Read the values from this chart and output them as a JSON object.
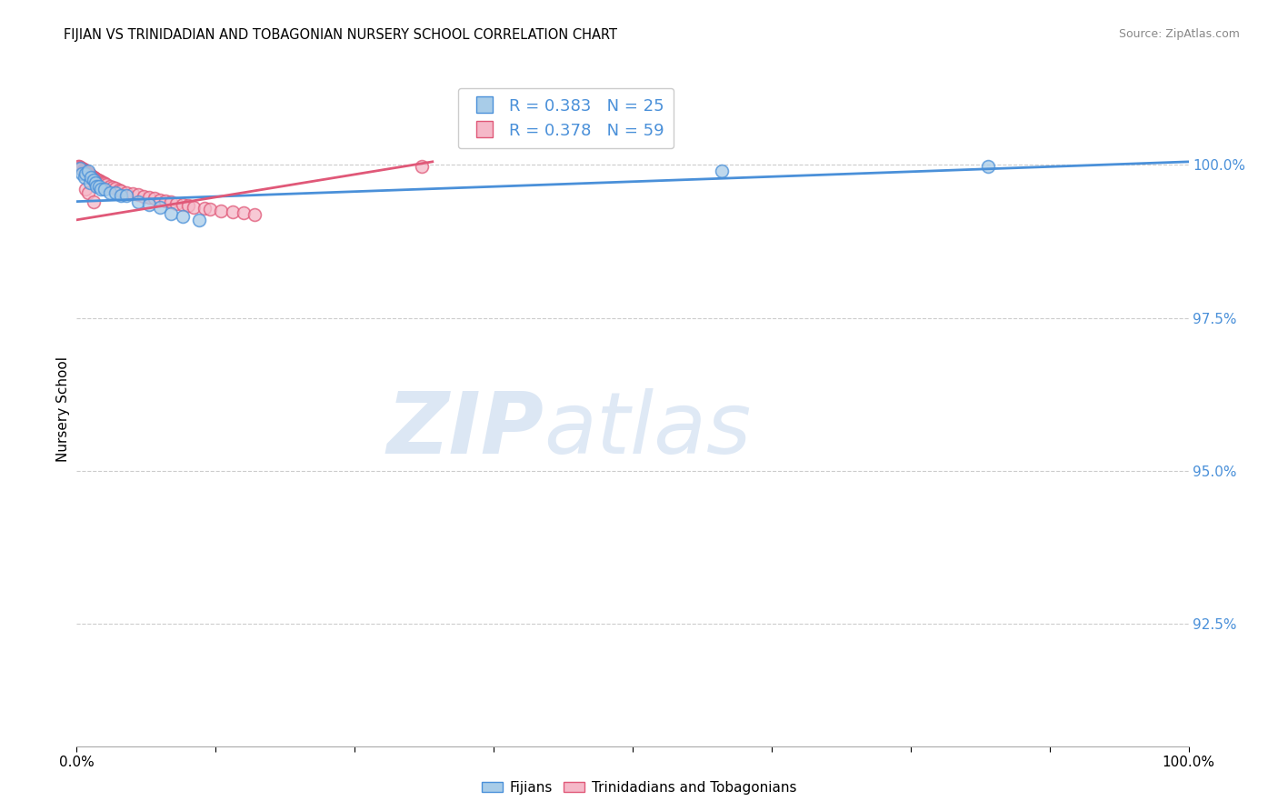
{
  "title": "FIJIAN VS TRINIDADIAN AND TOBAGONIAN NURSERY SCHOOL CORRELATION CHART",
  "source": "Source: ZipAtlas.com",
  "ylabel": "Nursery School",
  "ytick_labels": [
    "100.0%",
    "97.5%",
    "95.0%",
    "92.5%"
  ],
  "ytick_values": [
    1.0,
    0.975,
    0.95,
    0.925
  ],
  "xlim": [
    0.0,
    1.0
  ],
  "ylim": [
    0.905,
    1.015
  ],
  "legend_fijian": "R = 0.383   N = 25",
  "legend_trini": "R = 0.378   N = 59",
  "color_fijian_fill": "#a8cce8",
  "color_trini_fill": "#f5b8c8",
  "color_fijian_edge": "#4a90d9",
  "color_trini_edge": "#e05878",
  "color_fijian_line": "#4a90d9",
  "color_trini_line": "#e05878",
  "fijian_x": [
    0.003,
    0.005,
    0.007,
    0.008,
    0.01,
    0.012,
    0.013,
    0.015,
    0.017,
    0.018,
    0.02,
    0.022,
    0.025,
    0.03,
    0.035,
    0.04,
    0.045,
    0.055,
    0.065,
    0.075,
    0.085,
    0.095,
    0.11,
    0.58,
    0.82
  ],
  "fijian_y": [
    0.9995,
    0.9985,
    0.998,
    0.9985,
    0.999,
    0.997,
    0.998,
    0.9975,
    0.997,
    0.9965,
    0.9965,
    0.996,
    0.996,
    0.9955,
    0.9955,
    0.995,
    0.995,
    0.994,
    0.9935,
    0.993,
    0.992,
    0.9915,
    0.991,
    0.999,
    0.9998
  ],
  "trini_x": [
    0.001,
    0.002,
    0.003,
    0.004,
    0.005,
    0.006,
    0.006,
    0.007,
    0.007,
    0.008,
    0.009,
    0.01,
    0.01,
    0.011,
    0.012,
    0.012,
    0.013,
    0.014,
    0.015,
    0.015,
    0.016,
    0.017,
    0.018,
    0.019,
    0.02,
    0.021,
    0.022,
    0.023,
    0.024,
    0.025,
    0.027,
    0.03,
    0.032,
    0.035,
    0.038,
    0.04,
    0.045,
    0.05,
    0.055,
    0.06,
    0.065,
    0.07,
    0.075,
    0.08,
    0.085,
    0.09,
    0.095,
    0.1,
    0.105,
    0.115,
    0.12,
    0.13,
    0.14,
    0.15,
    0.16,
    0.008,
    0.01,
    0.015,
    0.31
  ],
  "trini_y": [
    0.9998,
    0.9997,
    0.9996,
    0.9995,
    0.9994,
    0.9993,
    0.9992,
    0.9991,
    0.999,
    0.9989,
    0.9988,
    0.9987,
    0.9986,
    0.9985,
    0.9984,
    0.9983,
    0.9982,
    0.9981,
    0.998,
    0.9979,
    0.9978,
    0.9977,
    0.9976,
    0.9975,
    0.9974,
    0.9973,
    0.9972,
    0.9971,
    0.997,
    0.9969,
    0.9967,
    0.9965,
    0.9963,
    0.9961,
    0.9959,
    0.9957,
    0.9955,
    0.9953,
    0.9951,
    0.9949,
    0.9947,
    0.9945,
    0.9943,
    0.9941,
    0.9939,
    0.9937,
    0.9935,
    0.9933,
    0.9931,
    0.9929,
    0.9927,
    0.9925,
    0.9923,
    0.9921,
    0.9919,
    0.996,
    0.9955,
    0.994,
    0.9997
  ],
  "fijian_trend_x": [
    0.0,
    1.0
  ],
  "fijian_trend_y": [
    0.994,
    1.0005
  ],
  "trini_trend_x": [
    0.0,
    0.32
  ],
  "trini_trend_y": [
    0.991,
    1.0005
  ]
}
